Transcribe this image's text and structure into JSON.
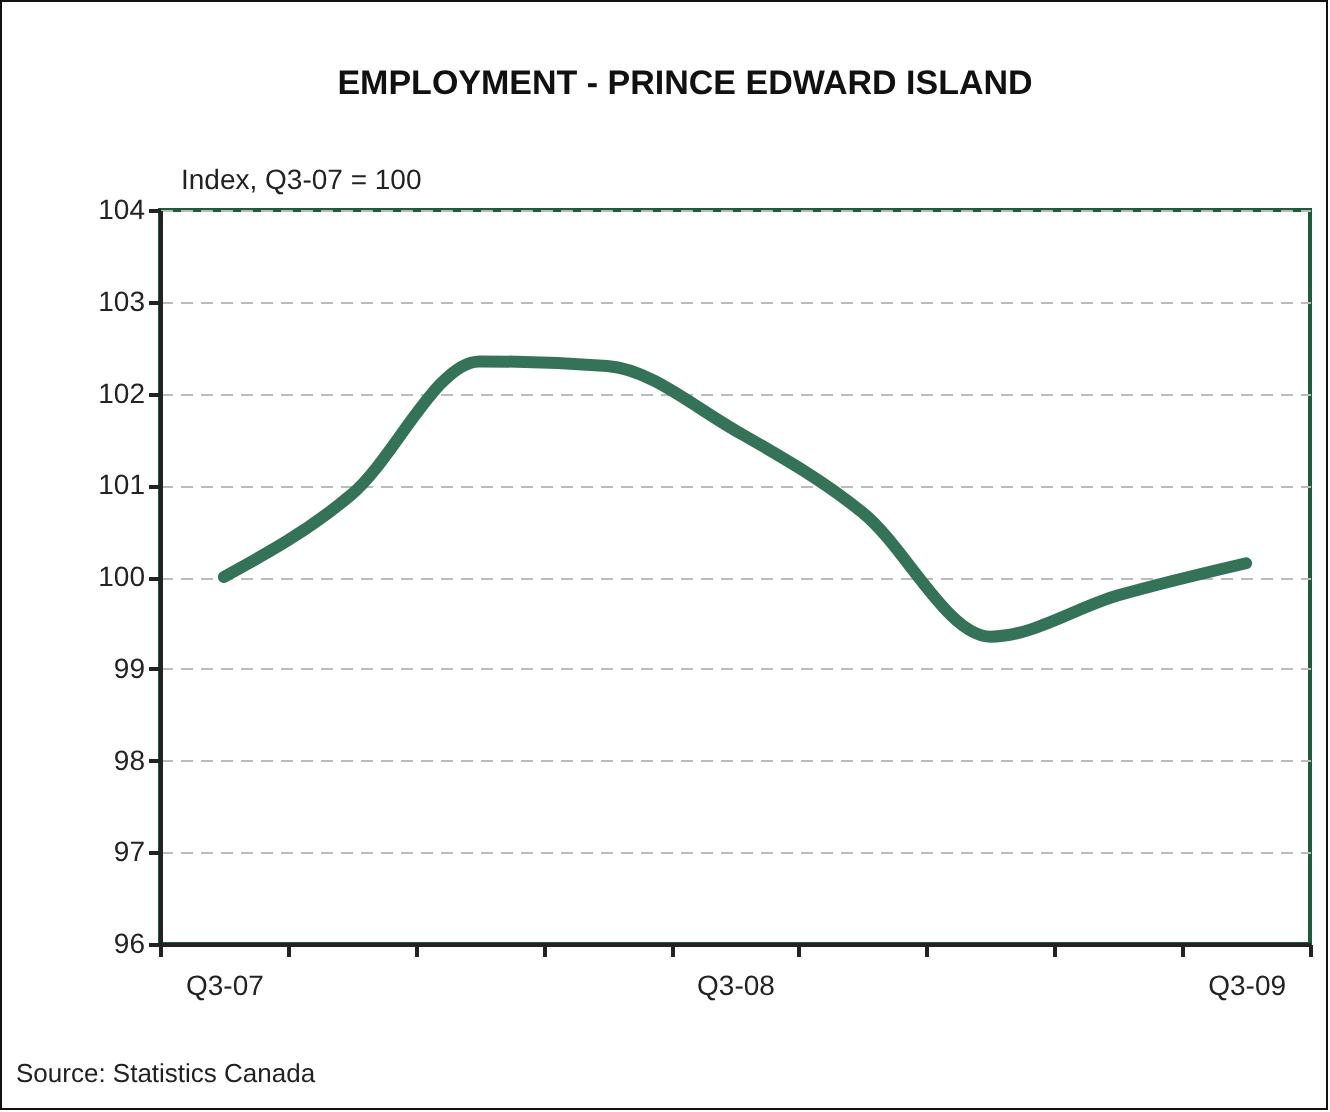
{
  "chart_data": {
    "type": "line",
    "title": "EMPLOYMENT - PRINCE EDWARD ISLAND",
    "ylabel": "Index, Q3-07 = 100",
    "categories": [
      "Q3-07",
      null,
      null,
      null,
      "Q3-08",
      null,
      null,
      null,
      "Q3-09"
    ],
    "series": [
      {
        "color": "#357359",
        "values": [
          100.0,
          100.9,
          102.35,
          102.3,
          101.6,
          100.7,
          99.35,
          99.8,
          100.15
        ]
      }
    ],
    "ylim": [
      96,
      104
    ],
    "yticks": [
      96,
      97,
      98,
      99,
      100,
      101,
      102,
      103,
      104
    ],
    "grid": "y",
    "line_style": "solid",
    "annotations": [
      "Source: Statistics Canada"
    ]
  }
}
